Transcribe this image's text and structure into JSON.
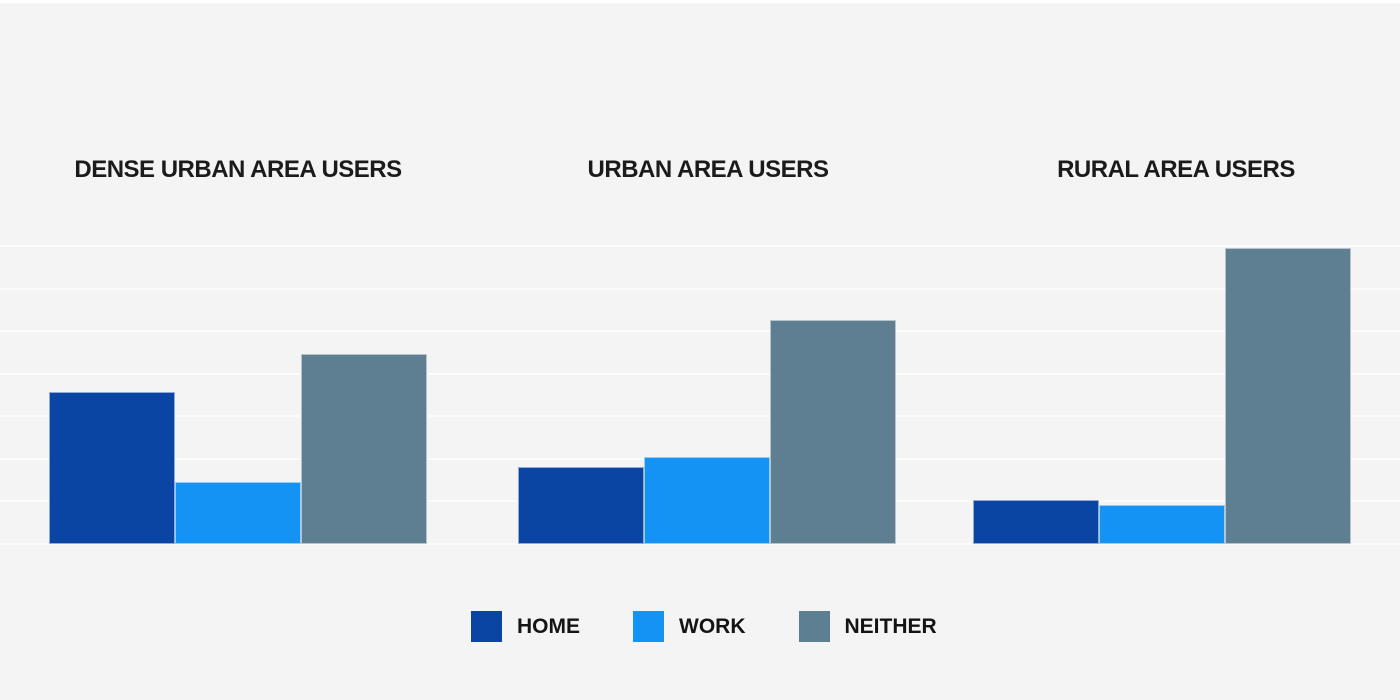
{
  "page": {
    "background_color": "#f4f4f4",
    "top_strip_color": "#ffffff",
    "gridline_color": "#fbfbfb"
  },
  "chart_data": {
    "type": "bar",
    "title": "",
    "groups": [
      {
        "label": "DENSE URBAN AREA USERS"
      },
      {
        "label": "URBAN AREA USERS"
      },
      {
        "label": "RURAL AREA USERS"
      }
    ],
    "series": [
      {
        "name": "HOME",
        "color": "#0a45a4",
        "values": [
          35.7,
          18.1,
          10.3
        ]
      },
      {
        "name": "WORK",
        "color": "#1593f5",
        "values": [
          14.6,
          20.4,
          9.2
        ]
      },
      {
        "name": "NEITHER",
        "color": "#5d7f91",
        "values": [
          44.6,
          52.6,
          69.5
        ]
      }
    ],
    "ylim": [
      0,
      70
    ],
    "gridline_step": 10,
    "grid": "horizontal",
    "y_axis_labels_visible": false,
    "legend_position": "bottom-center"
  }
}
